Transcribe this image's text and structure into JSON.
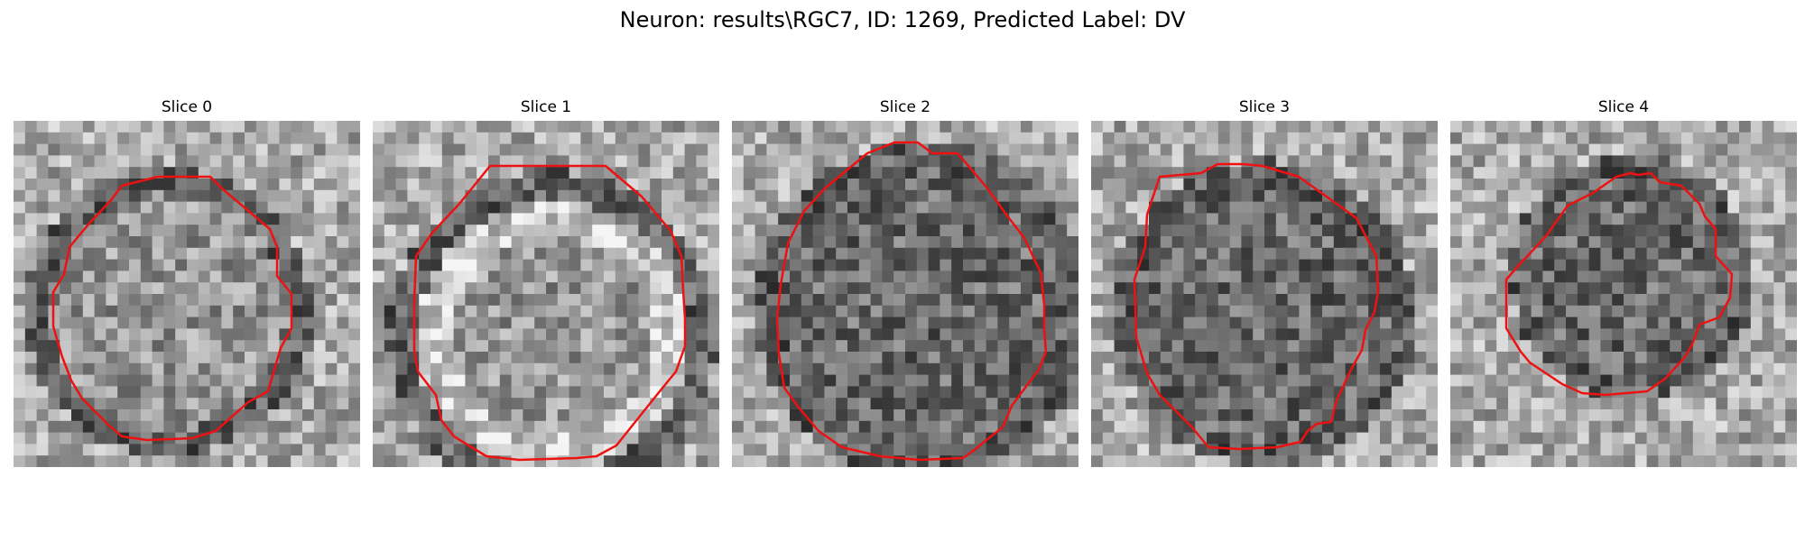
{
  "figure": {
    "title": "Neuron: results\\RGC7, ID: 1269, Predicted Label: DV"
  },
  "slices": [
    {
      "label": "Slice 0"
    },
    {
      "label": "Slice 1"
    },
    {
      "label": "Slice 2"
    },
    {
      "label": "Slice 3"
    },
    {
      "label": "Slice 4"
    }
  ],
  "style": {
    "contour_color": "#ee1111"
  }
}
